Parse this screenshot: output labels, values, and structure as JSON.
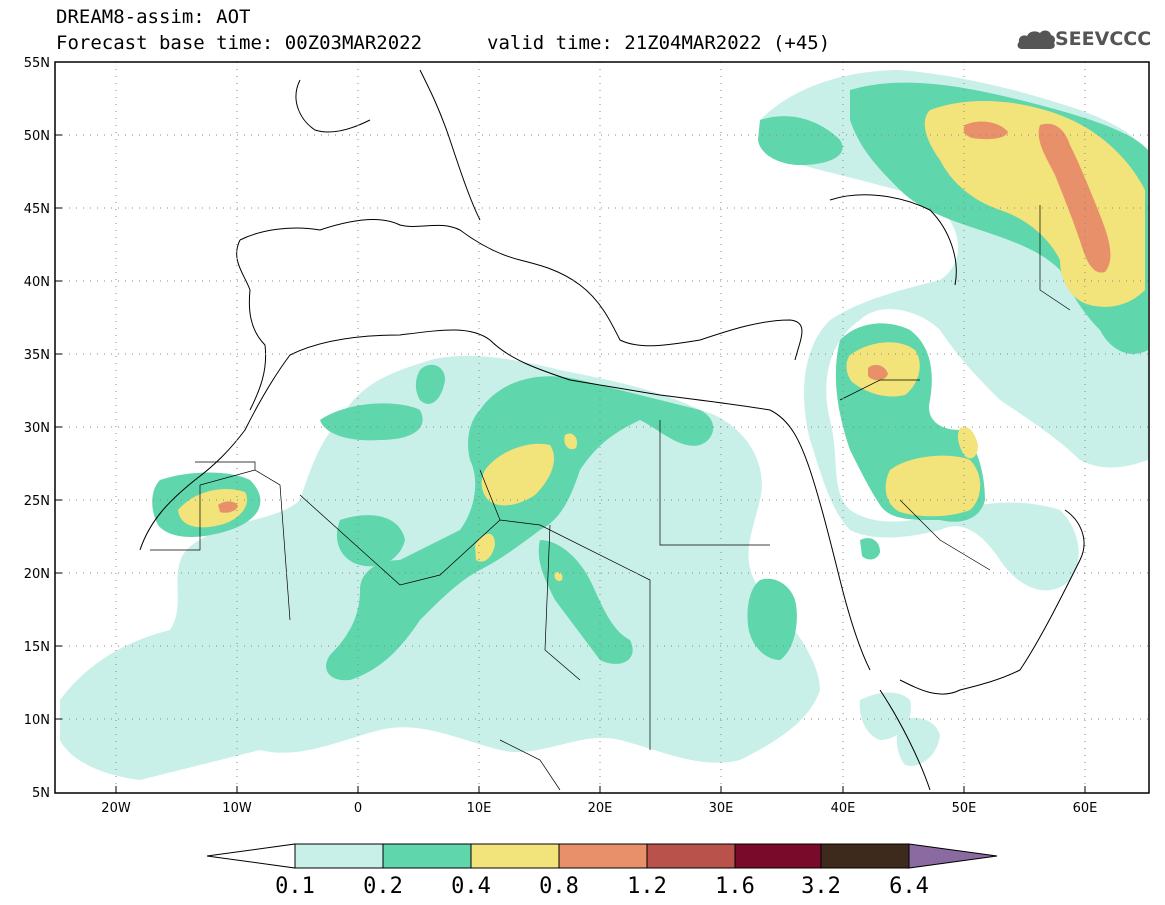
{
  "header": {
    "model_line": "DREAM8-assim: AOT",
    "base_time_line": "Forecast base time: 00Z03MAR2022",
    "valid_time_line": "valid time: 21Z04MAR2022 (+45)"
  },
  "logo": {
    "text": "SEEVCCC",
    "icon": "cloud-icon"
  },
  "map": {
    "lat_labels": [
      "55N",
      "50N",
      "45N",
      "40N",
      "35N",
      "30N",
      "25N",
      "20N",
      "15N",
      "10N",
      "5N"
    ],
    "lon_labels": [
      "20W",
      "10W",
      "0",
      "10E",
      "20E",
      "30E",
      "40E",
      "50E",
      "60E"
    ],
    "lat_range": [
      5,
      55
    ],
    "lon_range": [
      -25,
      65
    ],
    "grid": "dotted"
  },
  "colorbar": {
    "labels": [
      "0.1",
      "0.2",
      "0.4",
      "0.8",
      "1.2",
      "1.6",
      "3.2",
      "6.4"
    ],
    "colors": [
      "#ffffff",
      "#c8f0e8",
      "#5fd6ab",
      "#f2e37b",
      "#e8906a",
      "#b8524a",
      "#7a0a2a",
      "#3d2a1c",
      "#8a6aa0"
    ]
  },
  "field_colors": {
    "level_0_1": "#c8f0e8",
    "level_0_2": "#5fd6ab",
    "level_0_4": "#f2e37b",
    "level_0_8": "#e8906a"
  }
}
